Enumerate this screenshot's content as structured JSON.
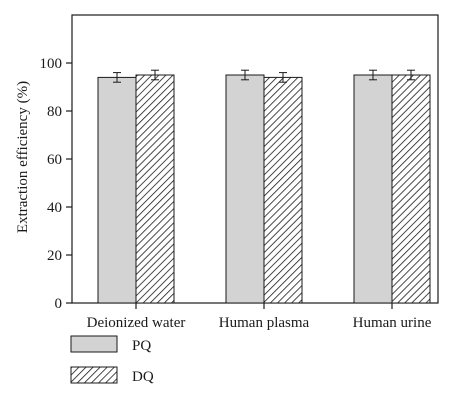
{
  "chart_data": {
    "type": "bar",
    "title": "",
    "xlabel": "",
    "ylabel": "Extraction efficiency (%)",
    "ylim": [
      0,
      120
    ],
    "yticks": [
      0,
      20,
      40,
      60,
      80,
      100
    ],
    "categories": [
      "Deionized water",
      "Human plasma",
      "Human urine"
    ],
    "series": [
      {
        "name": "PQ",
        "values": [
          94,
          95,
          95
        ],
        "errors": [
          2,
          2,
          2
        ],
        "fill": "solid",
        "color": "#d3d3d3"
      },
      {
        "name": "DQ",
        "values": [
          95,
          94,
          95
        ],
        "errors": [
          2,
          2,
          2
        ],
        "fill": "hatch",
        "color": "#ffffff"
      }
    ],
    "grid": false,
    "legend": "bottom-left",
    "colors": {
      "axis": "#1a1a1a",
      "bar_edge": "#1a1a1a",
      "solid_fill": "#d3d3d3",
      "hatch_line": "#1a1a1a"
    }
  }
}
